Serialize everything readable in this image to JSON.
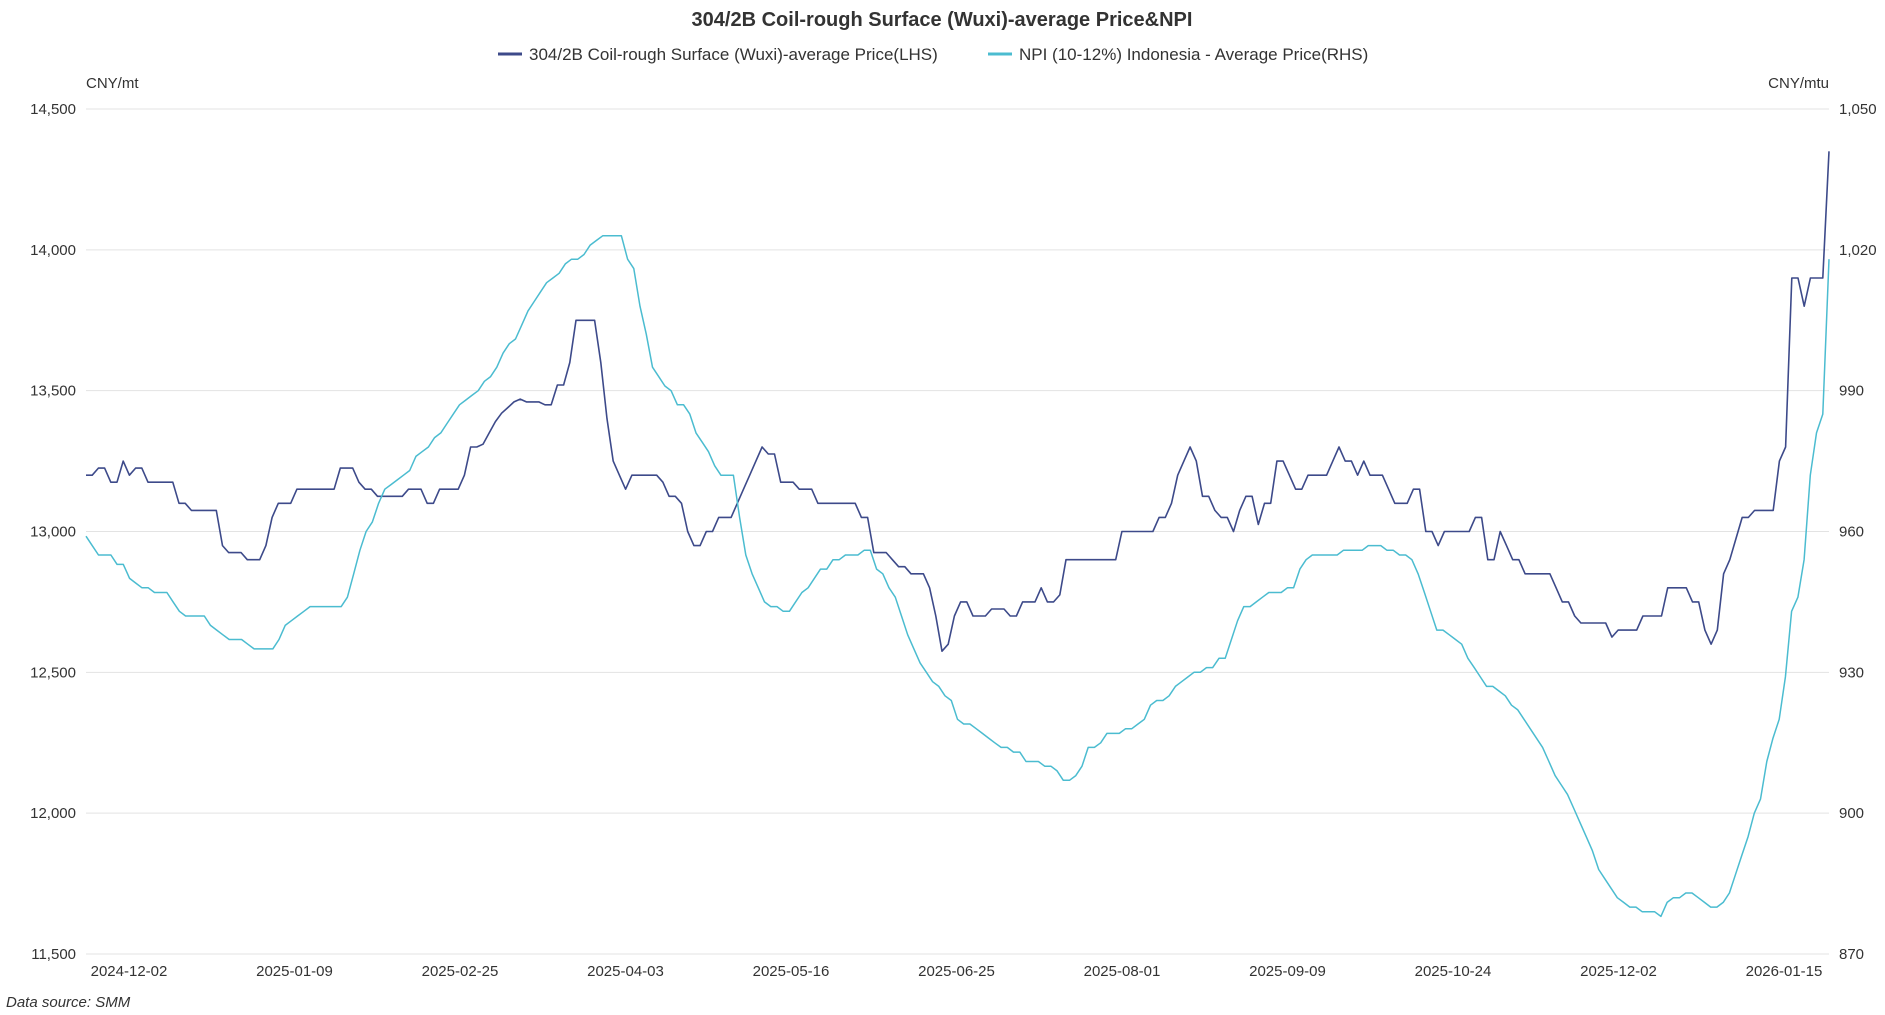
{
  "chart_data": {
    "type": "line",
    "title": "304/2B Coil-rough Surface (Wuxi)-average Price&NPI",
    "left_unit": "CNY/mt",
    "right_unit": "CNY/mtu",
    "source": "Data source:  SMM",
    "legend_placement": "top-center",
    "grid": true,
    "x_tick_labels": [
      "2024-12-02",
      "2025-01-09",
      "2025-02-25",
      "2025-04-03",
      "2025-05-16",
      "2025-06-25",
      "2025-08-01",
      "2025-09-09",
      "2025-10-24",
      "2025-12-02",
      "2026-01-15"
    ],
    "ylim_left": [
      11500,
      14500
    ],
    "yticks_left": [
      "11,500",
      "12,000",
      "12,500",
      "13,000",
      "13,500",
      "14,000",
      "14,500"
    ],
    "ylim_right": [
      870,
      1050
    ],
    "yticks_right": [
      "870",
      "900",
      "930",
      "960",
      "990",
      "1,020",
      "1,050"
    ],
    "series": [
      {
        "name": "304/2B Coil-rough Surface (Wuxi)-average Price(LHS)",
        "axis": "left",
        "color": "#3d4a8a",
        "values": [
          13200,
          13200,
          13225,
          13225,
          13175,
          13175,
          13250,
          13200,
          13225,
          13225,
          13175,
          13175,
          13175,
          13175,
          13175,
          13100,
          13100,
          13075,
          13075,
          13075,
          13075,
          13075,
          12950,
          12925,
          12925,
          12925,
          12900,
          12900,
          12900,
          12950,
          13050,
          13100,
          13100,
          13100,
          13150,
          13150,
          13150,
          13150,
          13150,
          13150,
          13150,
          13225,
          13225,
          13225,
          13175,
          13150,
          13150,
          13125,
          13125,
          13125,
          13125,
          13125,
          13150,
          13150,
          13150,
          13100,
          13100,
          13150,
          13150,
          13150,
          13150,
          13200,
          13300,
          13300,
          13310,
          13350,
          13390,
          13420,
          13440,
          13460,
          13470,
          13460,
          13460,
          13460,
          13450,
          13450,
          13520,
          13520,
          13600,
          13750,
          13750,
          13750,
          13750,
          13600,
          13400,
          13250,
          13200,
          13150,
          13200,
          13200,
          13200,
          13200,
          13200,
          13175,
          13125,
          13125,
          13100,
          13000,
          12950,
          12950,
          13000,
          13000,
          13050,
          13050,
          13050,
          13100,
          13150,
          13200,
          13250,
          13300,
          13275,
          13275,
          13175,
          13175,
          13175,
          13150,
          13150,
          13150,
          13100,
          13100,
          13100,
          13100,
          13100,
          13100,
          13100,
          13050,
          13050,
          12925,
          12925,
          12925,
          12900,
          12875,
          12875,
          12850,
          12850,
          12850,
          12800,
          12700,
          12575,
          12600,
          12700,
          12750,
          12750,
          12700,
          12700,
          12700,
          12725,
          12725,
          12725,
          12700,
          12700,
          12750,
          12750,
          12750,
          12800,
          12750,
          12750,
          12775,
          12900,
          12900,
          12900,
          12900,
          12900,
          12900,
          12900,
          12900,
          12900,
          13000,
          13000,
          13000,
          13000,
          13000,
          13000,
          13050,
          13050,
          13100,
          13200,
          13250,
          13300,
          13250,
          13125,
          13125,
          13075,
          13050,
          13050,
          13000,
          13075,
          13125,
          13125,
          13025,
          13100,
          13100,
          13250,
          13250,
          13200,
          13150,
          13150,
          13200,
          13200,
          13200,
          13200,
          13250,
          13300,
          13250,
          13250,
          13200,
          13250,
          13200,
          13200,
          13200,
          13150,
          13100,
          13100,
          13100,
          13150,
          13150,
          13000,
          13000,
          12950,
          13000,
          13000,
          13000,
          13000,
          13000,
          13050,
          13050,
          12900,
          12900,
          13000,
          12950,
          12900,
          12900,
          12850,
          12850,
          12850,
          12850,
          12850,
          12800,
          12750,
          12750,
          12700,
          12675,
          12675,
          12675,
          12675,
          12675,
          12625,
          12650,
          12650,
          12650,
          12650,
          12700,
          12700,
          12700,
          12700,
          12800,
          12800,
          12800,
          12800,
          12750,
          12750,
          12650,
          12600,
          12650,
          12850,
          12900,
          12975,
          13050,
          13050,
          13075,
          13075,
          13075,
          13075,
          13250,
          13300,
          13900,
          13900,
          13800,
          13900,
          13900,
          13900,
          14350
        ]
      },
      {
        "name": "NPI (10-12%) Indonesia - Average Price(RHS)",
        "axis": "right",
        "color": "#4bbcd0",
        "values": [
          959,
          957,
          955,
          955,
          955,
          953,
          953,
          950,
          949,
          948,
          948,
          947,
          947,
          947,
          945,
          943,
          942,
          942,
          942,
          942,
          940,
          939,
          938,
          937,
          937,
          937,
          936,
          935,
          935,
          935,
          935,
          937,
          940,
          941,
          942,
          943,
          944,
          944,
          944,
          944,
          944,
          944,
          946,
          951,
          956,
          960,
          962,
          966,
          969,
          970,
          971,
          972,
          973,
          976,
          977,
          978,
          980,
          981,
          983,
          985,
          987,
          988,
          989,
          990,
          992,
          993,
          995,
          998,
          1000,
          1001,
          1004,
          1007,
          1009,
          1011,
          1013,
          1014,
          1015,
          1017,
          1018,
          1018,
          1019,
          1021,
          1022,
          1023,
          1023,
          1023,
          1023,
          1018,
          1016,
          1008,
          1002,
          995,
          993,
          991,
          990,
          987,
          987,
          985,
          981,
          979,
          977,
          974,
          972,
          972,
          972,
          963,
          955,
          951,
          948,
          945,
          944,
          944,
          943,
          943,
          945,
          947,
          948,
          950,
          952,
          952,
          954,
          954,
          955,
          955,
          955,
          956,
          956,
          952,
          951,
          948,
          946,
          942,
          938,
          935,
          932,
          930,
          928,
          927,
          925,
          924,
          920,
          919,
          919,
          918,
          917,
          916,
          915,
          914,
          914,
          913,
          913,
          911,
          911,
          911,
          910,
          910,
          909,
          907,
          907,
          908,
          910,
          914,
          914,
          915,
          917,
          917,
          917,
          918,
          918,
          919,
          920,
          923,
          924,
          924,
          925,
          927,
          928,
          929,
          930,
          930,
          931,
          931,
          933,
          933,
          937,
          941,
          944,
          944,
          945,
          946,
          947,
          947,
          947,
          948,
          948,
          952,
          954,
          955,
          955,
          955,
          955,
          955,
          956,
          956,
          956,
          956,
          957,
          957,
          957,
          956,
          956,
          955,
          955,
          954,
          951,
          947,
          943,
          939,
          939,
          938,
          937,
          936,
          933,
          931,
          929,
          927,
          927,
          926,
          925,
          923,
          922,
          920,
          918,
          916,
          914,
          911,
          908,
          906,
          904,
          901,
          898,
          895,
          892,
          888,
          886,
          884,
          882,
          881,
          880,
          880,
          879,
          879,
          879,
          878,
          881,
          882,
          882,
          883,
          883,
          882,
          881,
          880,
          880,
          881,
          883,
          887,
          891,
          895,
          900,
          903,
          911,
          916,
          920,
          929,
          943,
          946,
          954,
          972,
          981,
          985,
          1018
        ]
      }
    ]
  }
}
